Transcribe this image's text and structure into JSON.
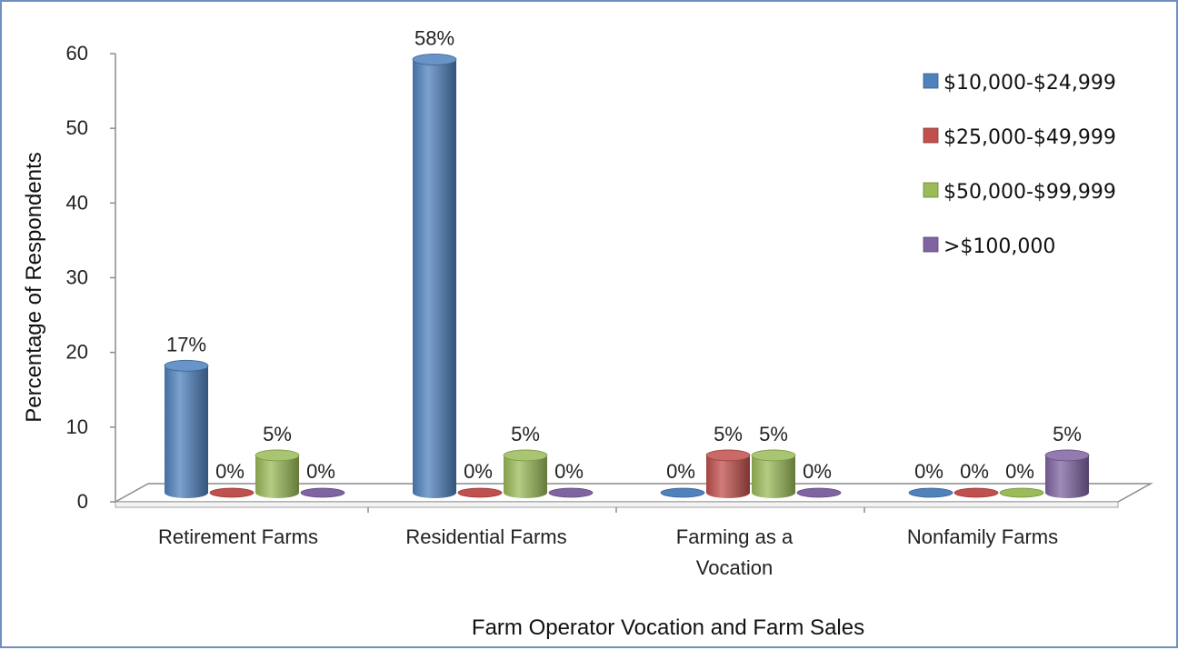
{
  "chart_data": {
    "type": "bar",
    "title": "",
    "xlabel": "Farm Operator Vocation and Farm Sales",
    "ylabel": "Percentage of Respondents",
    "ylim": [
      0,
      60
    ],
    "yticks": [
      "0",
      "10",
      "20",
      "30",
      "40",
      "50",
      "60"
    ],
    "categories": [
      [
        "Retirement Farms"
      ],
      [
        "Residential Farms"
      ],
      [
        "Farming as a",
        "Vocation"
      ],
      [
        "Nonfamily Farms"
      ]
    ],
    "series": [
      {
        "name": "$10,000-$24,999",
        "color": "#4f81bd",
        "values": [
          17,
          58,
          0,
          0
        ],
        "labels": [
          "17%",
          "58%",
          "0%",
          "0%"
        ]
      },
      {
        "name": "$25,000-$49,999",
        "color": "#c0504d",
        "values": [
          0,
          0,
          5,
          0
        ],
        "labels": [
          "0%",
          "0%",
          "5%",
          "0%"
        ]
      },
      {
        "name": "$50,000-$99,999",
        "color": "#9bbb59",
        "values": [
          5,
          5,
          5,
          0
        ],
        "labels": [
          "5%",
          "5%",
          "5%",
          "0%"
        ]
      },
      {
        "name": ">$100,000",
        "color": "#8064a2",
        "values": [
          0,
          0,
          0,
          5
        ],
        "labels": [
          "0%",
          "0%",
          "0%",
          "5%"
        ]
      }
    ],
    "legend_position": "right",
    "grid": false
  }
}
